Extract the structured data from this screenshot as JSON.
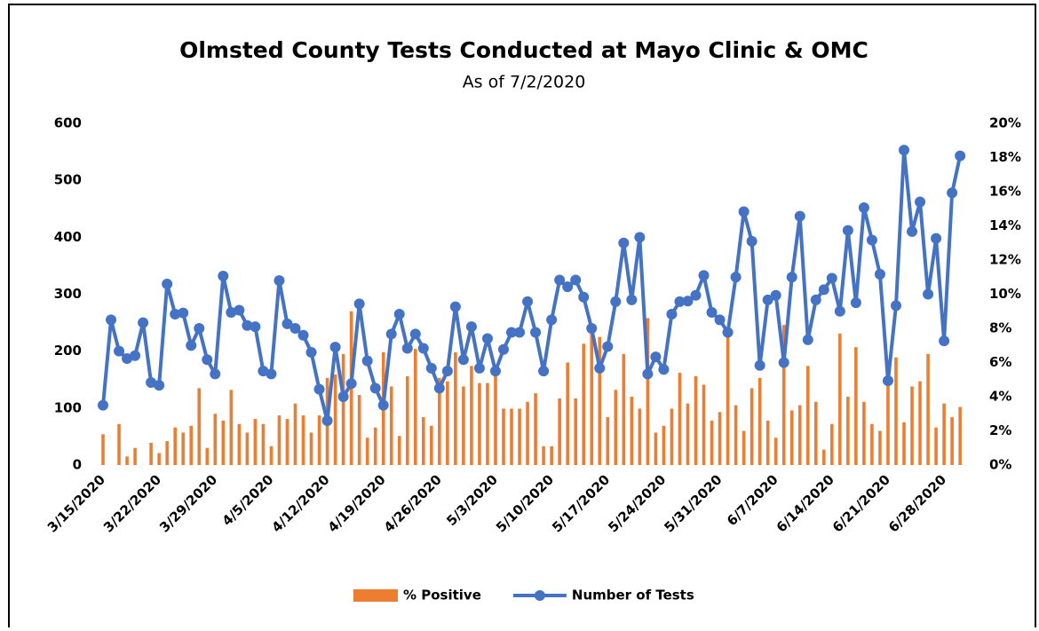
{
  "chart_data": {
    "type": "bar_line",
    "title": "Olmsted County Tests Conducted at Mayo Clinic & OMC",
    "subtitle": "As of 7/2/2020",
    "categories": [
      "3/15/2020",
      null,
      null,
      null,
      null,
      null,
      null,
      "3/22/2020",
      null,
      null,
      null,
      null,
      null,
      null,
      "3/29/2020",
      null,
      null,
      null,
      null,
      null,
      null,
      "4/5/2020",
      null,
      null,
      null,
      null,
      null,
      null,
      "4/12/2020",
      null,
      null,
      null,
      null,
      null,
      null,
      "4/19/2020",
      null,
      null,
      null,
      null,
      null,
      null,
      "4/26/2020",
      null,
      null,
      null,
      null,
      null,
      null,
      "5/3/2020",
      null,
      null,
      null,
      null,
      null,
      null,
      "5/10/2020",
      null,
      null,
      null,
      null,
      null,
      null,
      "5/17/2020",
      null,
      null,
      null,
      null,
      null,
      null,
      "5/24/2020",
      null,
      null,
      null,
      null,
      null,
      null,
      "5/31/2020",
      null,
      null,
      null,
      null,
      null,
      null,
      "6/7/2020",
      null,
      null,
      null,
      null,
      null,
      null,
      "6/14/2020",
      null,
      null,
      null,
      null,
      null,
      null,
      "6/21/2020",
      null,
      null,
      null,
      null,
      null,
      null,
      "6/28/2020",
      null,
      null
    ],
    "series": [
      {
        "name": "% Positive",
        "type": "bar",
        "axis": "y2",
        "color": "#ed7d31",
        "values": [
          1.8,
          0,
          2.4,
          0.5,
          1.0,
          0,
          1.3,
          0.7,
          1.4,
          2.2,
          1.9,
          2.3,
          4.5,
          1.0,
          3.0,
          2.6,
          4.4,
          2.4,
          1.9,
          2.7,
          2.4,
          1.1,
          2.9,
          2.7,
          3.6,
          2.9,
          1.9,
          2.9,
          5.1,
          5.3,
          6.5,
          9.0,
          4.1,
          1.6,
          2.2,
          6.6,
          4.6,
          1.7,
          5.2,
          6.8,
          2.8,
          2.3,
          5.1,
          4.9,
          6.6,
          4.6,
          5.8,
          4.8,
          4.8,
          5.3,
          3.3,
          3.3,
          3.3,
          3.7,
          4.2,
          1.1,
          1.1,
          3.9,
          6.0,
          3.9,
          7.1,
          7.7,
          7.5,
          2.8,
          4.4,
          6.5,
          4.0,
          3.3,
          8.6,
          1.9,
          2.3,
          3.3,
          5.4,
          3.6,
          5.2,
          4.7,
          2.6,
          3.1,
          7.8,
          3.5,
          2.0,
          4.5,
          5.1,
          2.6,
          1.6,
          8.2,
          3.2,
          3.5,
          5.8,
          3.7,
          0.9,
          2.4,
          7.7,
          4.0,
          6.9,
          3.7,
          2.4,
          2.0,
          4.9,
          6.3,
          2.5,
          4.6,
          4.9,
          6.5,
          2.2,
          3.6,
          2.8,
          3.4
        ]
      },
      {
        "name": "Number of Tests",
        "type": "line",
        "axis": "y",
        "color": "#4472c4",
        "values": [
          105,
          255,
          200,
          187,
          192,
          250,
          145,
          140,
          318,
          265,
          267,
          210,
          240,
          185,
          160,
          332,
          268,
          272,
          245,
          243,
          165,
          160,
          324,
          248,
          240,
          228,
          198,
          133,
          78,
          207,
          120,
          143,
          283,
          183,
          135,
          105,
          230,
          265,
          205,
          230,
          205,
          170,
          135,
          165,
          278,
          185,
          243,
          170,
          222,
          165,
          203,
          233,
          233,
          287,
          233,
          165,
          255,
          325,
          313,
          325,
          295,
          240,
          170,
          208,
          287,
          390,
          290,
          400,
          160,
          190,
          168,
          265,
          287,
          288,
          298,
          333,
          268,
          255,
          233,
          330,
          445,
          393,
          175,
          290,
          298,
          180,
          330,
          437,
          220,
          290,
          308,
          328,
          270,
          412,
          285,
          452,
          395,
          335,
          148,
          280,
          553,
          410,
          462,
          300,
          398,
          218,
          478,
          543
        ]
      }
    ],
    "ylim": [
      0,
      600
    ],
    "yticks": [
      0,
      100,
      200,
      300,
      400,
      500,
      600
    ],
    "y2lim": [
      0,
      20
    ],
    "y2ticks": [
      {
        "value": 0,
        "label": "0%"
      },
      {
        "value": 2,
        "label": "2%"
      },
      {
        "value": 4,
        "label": "4%"
      },
      {
        "value": 6,
        "label": "6%"
      },
      {
        "value": 8,
        "label": "8%"
      },
      {
        "value": 10,
        "label": "10%"
      },
      {
        "value": 12,
        "label": "12%"
      },
      {
        "value": 14,
        "label": "14%"
      },
      {
        "value": 16,
        "label": "16%"
      },
      {
        "value": 18,
        "label": "18%"
      },
      {
        "value": 20,
        "label": "20%"
      }
    ],
    "grid": false,
    "legend": "bottom"
  }
}
